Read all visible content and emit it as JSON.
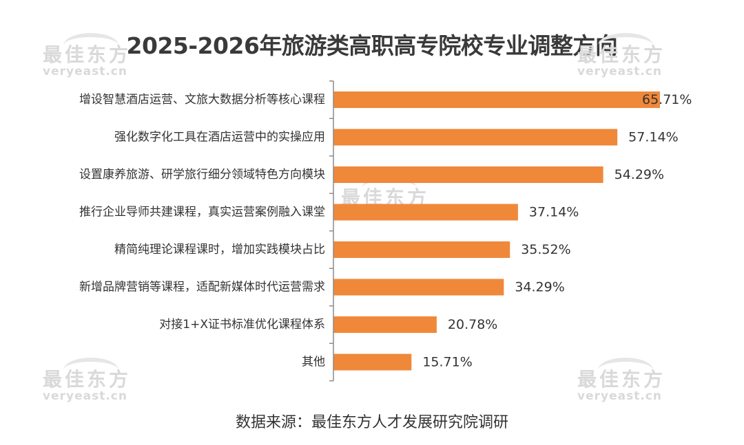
{
  "title": "2025-2026年旅游类高职高专院校专业调整方向",
  "source": "数据来源：最佳东方人才发展研究院调研",
  "watermark": {
    "cn": "最佳东方",
    "en": "veryeast.cn"
  },
  "colors": {
    "bar": "#F0883A",
    "axis": "#8c8c8c",
    "text": "#333333",
    "watermark": "#d9d9d9"
  },
  "chart_data": {
    "type": "bar",
    "orientation": "horizontal",
    "title": "2025-2026年旅游类高职高专院校专业调整方向",
    "categories": [
      "增设智慧酒店运营、文旅大数据分析等核心课程",
      "强化数字化工具在酒店运营中的实操应用",
      "设置康养旅游、研学旅行细分领域特色方向模块",
      "推行企业导师共建课程，真实运营案例融入课堂",
      "精简纯理论课程课时，增加实践模块占比",
      "新增品牌营销等课程，适配新媒体时代运营需求",
      "对接1+X证书标准优化课程体系",
      "其他"
    ],
    "values": [
      65.71,
      57.14,
      54.29,
      37.14,
      35.52,
      34.29,
      20.78,
      15.71
    ],
    "value_labels": [
      "65.71%",
      "57.14%",
      "54.29%",
      "37.14%",
      "35.52%",
      "34.29%",
      "20.78%",
      "15.71%"
    ],
    "unit": "%",
    "xlim": [
      0,
      70
    ],
    "grid": false,
    "legend": "none"
  }
}
